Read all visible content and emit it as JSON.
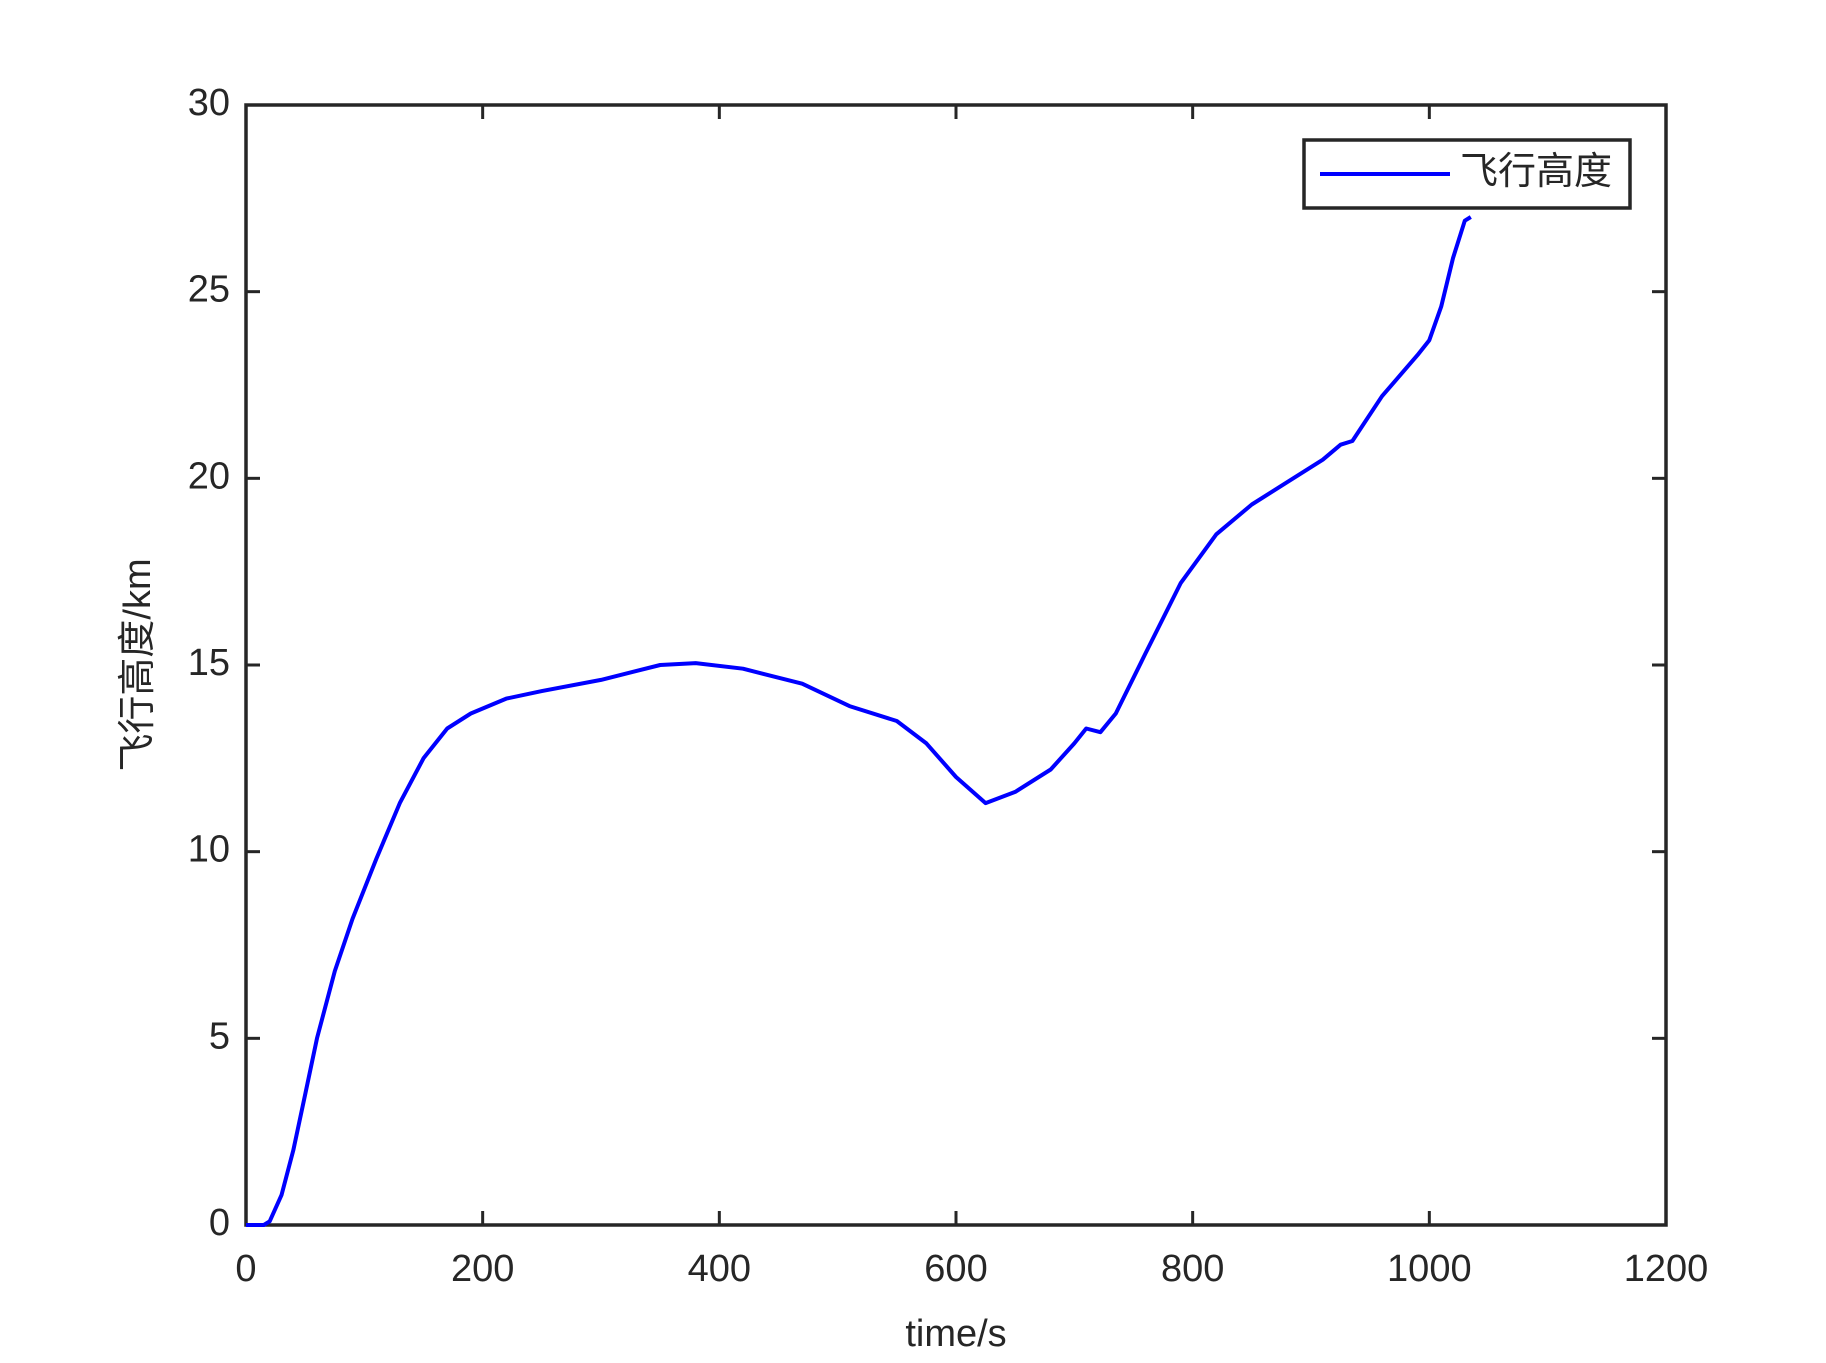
{
  "chart_data": {
    "type": "line",
    "xlabel": "time/s",
    "ylabel": "飞行高度/km",
    "x": [
      0,
      15,
      20,
      30,
      40,
      50,
      60,
      75,
      90,
      110,
      130,
      150,
      170,
      190,
      220,
      250,
      300,
      350,
      380,
      420,
      470,
      510,
      550,
      575,
      600,
      625,
      650,
      680,
      700,
      710,
      722,
      735,
      760,
      790,
      820,
      850,
      880,
      910,
      925,
      935,
      960,
      990,
      1000,
      1010,
      1020,
      1030,
      1035
    ],
    "series": [
      {
        "name": "飞行高度",
        "color": "#0000ff",
        "values": [
          0,
          0,
          0.1,
          0.8,
          2,
          3.5,
          5,
          6.8,
          8.2,
          9.8,
          11.3,
          12.5,
          13.3,
          13.7,
          14.1,
          14.3,
          14.6,
          15.0,
          15.05,
          14.9,
          14.5,
          13.9,
          13.5,
          12.9,
          12.0,
          11.3,
          11.6,
          12.2,
          12.9,
          13.3,
          13.2,
          13.7,
          15.3,
          17.2,
          18.5,
          19.3,
          19.9,
          20.5,
          20.9,
          21.0,
          22.2,
          23.3,
          23.7,
          24.6,
          25.9,
          26.9,
          27.0
        ]
      }
    ],
    "xlim": [
      0,
      1200
    ],
    "xticks": [
      0,
      200,
      400,
      600,
      800,
      1000,
      1200
    ],
    "ylim": [
      0,
      30
    ],
    "yticks": [
      0,
      5,
      10,
      15,
      20,
      25,
      30
    ],
    "grid": false,
    "legend": "upper right"
  }
}
